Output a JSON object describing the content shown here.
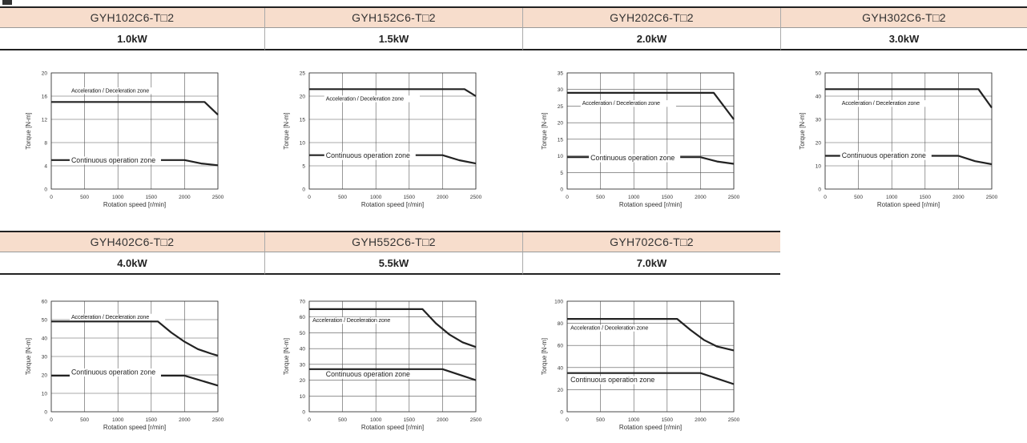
{
  "columns_row1": [
    {
      "model": "GYH102C6-T□2",
      "power": "1.0kW"
    },
    {
      "model": "GYH152C6-T□2",
      "power": "1.5kW"
    },
    {
      "model": "GYH202C6-T□2",
      "power": "2.0kW"
    },
    {
      "model": "GYH302C6-T□2",
      "power": "3.0kW"
    }
  ],
  "columns_row2": [
    {
      "model": "GYH402C6-T□2",
      "power": "4.0kW"
    },
    {
      "model": "GYH552C6-T□2",
      "power": "5.5kW"
    },
    {
      "model": "GYH702C6-T□2",
      "power": "7.0kW"
    }
  ],
  "colors": {
    "header_bg": "#f7ddcc",
    "line": "#222222",
    "grid": "#555555"
  },
  "chart_data": [
    {
      "type": "line",
      "xlabel": "Rotation speed [r/min]",
      "ylabel": "Torque [N-m]",
      "xlim": [
        0,
        2500
      ],
      "xticks": [
        0,
        500,
        1000,
        1500,
        2000,
        2500
      ],
      "ylim": [
        0,
        20
      ],
      "yticks": [
        0,
        4,
        8,
        12,
        16,
        20
      ],
      "grid": true,
      "series": [
        {
          "name": "Acceleration / Deceleration zone",
          "x": [
            0,
            2300,
            2500
          ],
          "y": [
            15,
            15,
            12.8
          ]
        },
        {
          "name": "Continuous operation zone",
          "x": [
            0,
            2000,
            2250,
            2500
          ],
          "y": [
            5,
            5,
            4.4,
            4.1
          ]
        }
      ]
    },
    {
      "type": "line",
      "xlabel": "Rotation speed [r/min]",
      "ylabel": "Torque [N-m]",
      "xlim": [
        0,
        2500
      ],
      "xticks": [
        0,
        500,
        1000,
        1500,
        2000,
        2500
      ],
      "ylim": [
        0,
        25
      ],
      "yticks": [
        0,
        5,
        10,
        15,
        20,
        25
      ],
      "grid": true,
      "series": [
        {
          "name": "Acceleration / Deceleration zone",
          "x": [
            0,
            2330,
            2500
          ],
          "y": [
            21.5,
            21.5,
            20
          ]
        },
        {
          "name": "Continuous operation zone",
          "x": [
            0,
            2000,
            2250,
            2500
          ],
          "y": [
            7.3,
            7.3,
            6.2,
            5.5
          ]
        }
      ]
    },
    {
      "type": "line",
      "xlabel": "Rotation speed [r/min]",
      "ylabel": "Torque [N-m]",
      "xlim": [
        0,
        2500
      ],
      "xticks": [
        0,
        500,
        1000,
        1500,
        2000,
        2500
      ],
      "ylim": [
        0,
        35
      ],
      "yticks": [
        0,
        5,
        10,
        15,
        20,
        25,
        30,
        35
      ],
      "grid": true,
      "series": [
        {
          "name": "Acceleration / Deceleration zone",
          "x": [
            0,
            2200,
            2500
          ],
          "y": [
            29,
            29,
            21
          ]
        },
        {
          "name": "Continuous operation zone",
          "x": [
            0,
            2000,
            2250,
            2500
          ],
          "y": [
            9.6,
            9.6,
            8.3,
            7.6
          ]
        }
      ]
    },
    {
      "type": "line",
      "xlabel": "Rotation speed [r/min]",
      "ylabel": "Torque [N-m]",
      "xlim": [
        0,
        2500
      ],
      "xticks": [
        0,
        500,
        1000,
        1500,
        2000,
        2500
      ],
      "ylim": [
        0,
        50
      ],
      "yticks": [
        0,
        10,
        20,
        30,
        40,
        50
      ],
      "grid": true,
      "series": [
        {
          "name": "Acceleration / Deceleration zone",
          "x": [
            0,
            2300,
            2500
          ],
          "y": [
            43,
            43,
            35
          ]
        },
        {
          "name": "Continuous operation zone",
          "x": [
            0,
            2000,
            2250,
            2500
          ],
          "y": [
            14.3,
            14.3,
            12,
            10.7
          ]
        }
      ]
    },
    {
      "type": "line",
      "xlabel": "Rotation speed [r/min]",
      "ylabel": "Torque [N-m]",
      "xlim": [
        0,
        2500
      ],
      "xticks": [
        0,
        500,
        1000,
        1500,
        2000,
        2500
      ],
      "ylim": [
        0,
        60
      ],
      "yticks": [
        0,
        10,
        20,
        30,
        40,
        50,
        60
      ],
      "grid": true,
      "series": [
        {
          "name": "Acceleration / Deceleration zone",
          "x": [
            0,
            1600,
            1800,
            2000,
            2200,
            2400,
            2500
          ],
          "y": [
            49,
            49,
            43,
            38,
            34,
            31.5,
            30.5
          ]
        },
        {
          "name": "Continuous operation zone",
          "x": [
            0,
            2000,
            2500
          ],
          "y": [
            19.6,
            19.6,
            14.2
          ]
        }
      ]
    },
    {
      "type": "line",
      "xlabel": "Rotation speed [r/min]",
      "ylabel": "Torque [N-m]",
      "xlim": [
        0,
        2500
      ],
      "xticks": [
        0,
        500,
        1000,
        1500,
        2000,
        2500
      ],
      "ylim": [
        0,
        70
      ],
      "yticks": [
        0,
        10,
        20,
        30,
        40,
        50,
        60,
        70
      ],
      "grid": true,
      "series": [
        {
          "name": "Acceleration / Deceleration zone",
          "x": [
            0,
            1700,
            1900,
            2100,
            2300,
            2500
          ],
          "y": [
            65,
            65,
            56,
            49,
            44,
            41
          ]
        },
        {
          "name": "Continuous operation zone",
          "x": [
            0,
            2000,
            2500
          ],
          "y": [
            27,
            27,
            20
          ]
        }
      ]
    },
    {
      "type": "line",
      "xlabel": "Rotation speed [r/min]",
      "ylabel": "Torque [N-m]",
      "xlim": [
        0,
        2500
      ],
      "xticks": [
        0,
        500,
        1000,
        1500,
        2000,
        2500
      ],
      "ylim": [
        0,
        100
      ],
      "yticks": [
        0,
        20,
        40,
        60,
        80,
        100
      ],
      "grid": true,
      "series": [
        {
          "name": "Acceleration / Deceleration zone",
          "x": [
            0,
            1650,
            1850,
            2050,
            2250,
            2500
          ],
          "y": [
            84,
            84,
            74,
            65,
            59,
            55.5
          ]
        },
        {
          "name": "Continuous operation zone",
          "x": [
            0,
            2000,
            2500
          ],
          "y": [
            35,
            35,
            25
          ]
        }
      ]
    }
  ]
}
